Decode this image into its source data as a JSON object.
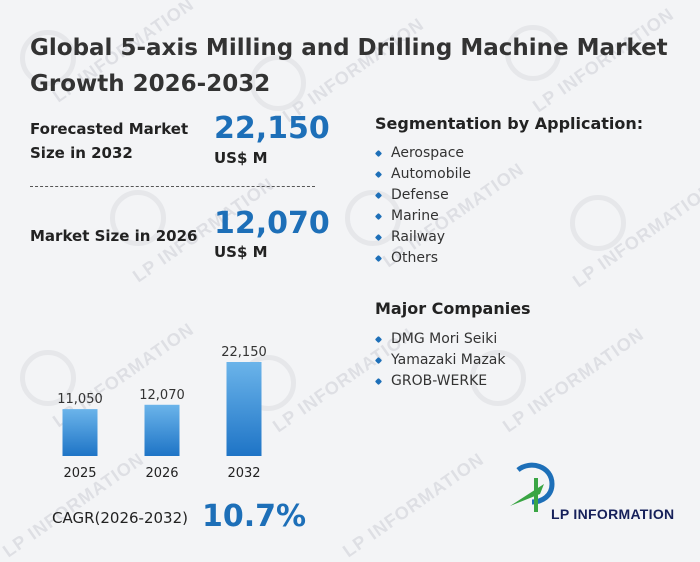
{
  "title": "Global 5-axis Milling and Drilling Machine Market Growth 2026-2032",
  "forecast": {
    "label": "Forecasted Market Size in 2032",
    "value": "22,150",
    "unit": "US$ M"
  },
  "current": {
    "label": "Market Size in 2026",
    "value": "12,070",
    "unit": "US$ M"
  },
  "segmentation": {
    "title": "Segmentation by Application:",
    "items": [
      "Aerospace",
      "Automobile",
      "Defense",
      "Marine",
      "Railway",
      "Others"
    ]
  },
  "companies": {
    "title": "Major Companies",
    "items": [
      "DMG Mori Seiki",
      "Yamazaki Mazak",
      "GROB-WERKE"
    ]
  },
  "cagr": {
    "label": "CAGR(2026-2032)",
    "value": "10.7%"
  },
  "brand": {
    "name": "LP INFORMATION",
    "watermark": "LP INFORMATION"
  },
  "colors": {
    "accent": "#1d6fb8",
    "bar_top": "#6bb4ea",
    "bar_bottom": "#1e74c6",
    "logo_green": "#3aa544"
  },
  "chart_data": {
    "type": "bar",
    "categories": [
      "2025",
      "2026",
      "2032"
    ],
    "values": [
      11050,
      12070,
      22150
    ],
    "data_labels": [
      "11,050",
      "12,070",
      "22,150"
    ],
    "ylim": [
      0,
      22150
    ]
  }
}
